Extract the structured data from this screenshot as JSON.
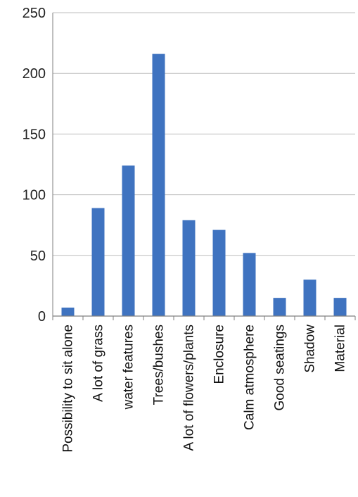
{
  "chart_data": {
    "type": "bar",
    "title": "",
    "xlabel": "",
    "ylabel": "",
    "categories": [
      "Possibility to sit alone",
      "A lot of grass",
      "water features",
      "Trees/bushes",
      "A lot of flowers/plants",
      "Enclosure",
      "Calm atmosphere",
      "Good seatings",
      "Shadow",
      "Material"
    ],
    "values": [
      7,
      89,
      124,
      216,
      79,
      71,
      52,
      15,
      30,
      15
    ],
    "ylim": [
      0,
      250
    ],
    "yticks": [
      0,
      50,
      100,
      150,
      200,
      250
    ],
    "grid": true,
    "legend": "none",
    "colors": {
      "bar": "#3f73c0",
      "grid": "#bdbdbd",
      "axis": "#7f7f7f"
    }
  }
}
